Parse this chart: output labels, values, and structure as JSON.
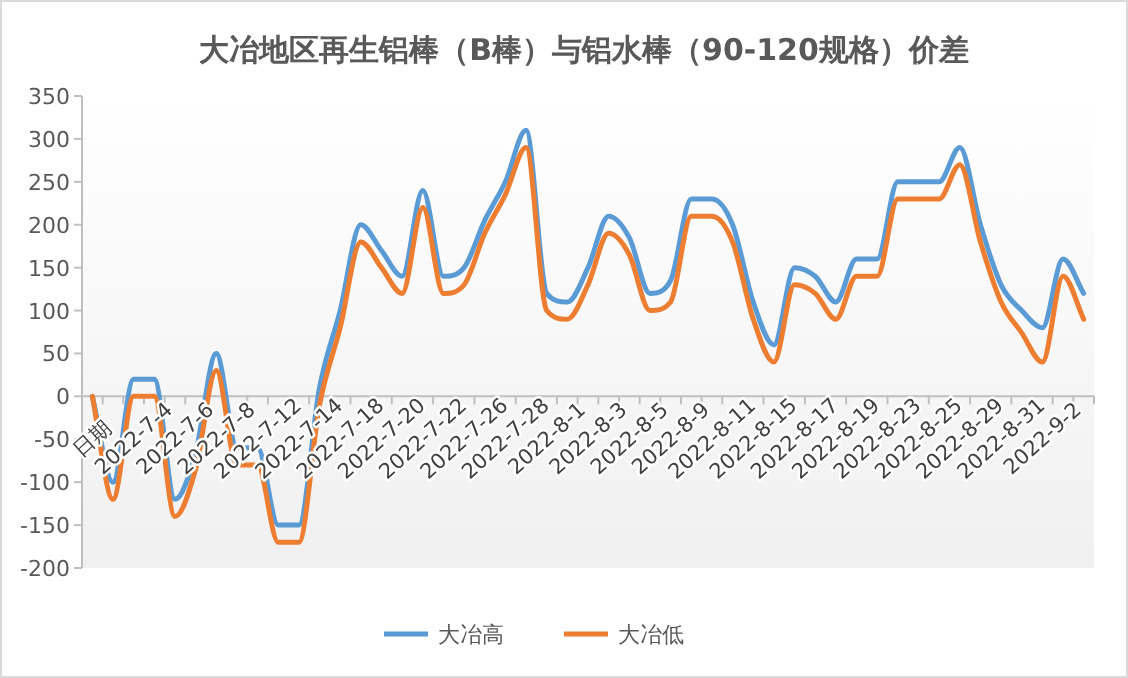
{
  "chart_data": {
    "type": "line",
    "title": "大冶地区再生铝棒（B棒）与铝水棒（90-120规格）价差",
    "categories": [
      "日期",
      null,
      "2022-7-4",
      null,
      "2022-7-6",
      null,
      "2022-7-8",
      null,
      "2022-7-12",
      null,
      "2022-7-14",
      null,
      "2022-7-18",
      null,
      "2022-7-20",
      null,
      "2022-7-22",
      null,
      "2022-7-26",
      null,
      "2022-7-28",
      null,
      "2022-8-1",
      null,
      "2022-8-3",
      null,
      "2022-8-5",
      null,
      "2022-8-9",
      null,
      "2022-8-11",
      null,
      "2022-8-15",
      null,
      "2022-8-17",
      null,
      "2022-8-19",
      null,
      "2022-8-23",
      null,
      "2022-8-25",
      null,
      "2022-8-29",
      null,
      "2022-8-31",
      null,
      "2022-9-2",
      null,
      null
    ],
    "series": [
      {
        "name": "大冶高",
        "color": "#5b9bd5",
        "values": [
          0,
          -100,
          20,
          20,
          -120,
          -66,
          50,
          -60,
          -60,
          -150,
          -150,
          10,
          100,
          200,
          170,
          140,
          240,
          140,
          150,
          205,
          250,
          310,
          120,
          110,
          150,
          210,
          185,
          120,
          135,
          230,
          230,
          200,
          110,
          60,
          150,
          140,
          110,
          160,
          160,
          250,
          250,
          250,
          290,
          200,
          130,
          100,
          80,
          160,
          120
        ]
      },
      {
        "name": "大冶低",
        "color": "#ed7d31",
        "values": [
          0,
          -120,
          0,
          0,
          -140,
          -85,
          30,
          -80,
          -80,
          -170,
          -170,
          -10,
          80,
          180,
          150,
          120,
          220,
          120,
          130,
          190,
          235,
          290,
          100,
          90,
          130,
          190,
          165,
          100,
          110,
          210,
          210,
          180,
          90,
          40,
          130,
          120,
          90,
          140,
          140,
          230,
          230,
          230,
          270,
          180,
          110,
          74,
          40,
          140,
          90
        ]
      }
    ],
    "ylim": [
      -200,
      350
    ],
    "yticks": [
      -200,
      -150,
      -100,
      -50,
      0,
      50,
      100,
      150,
      200,
      250,
      300,
      350
    ],
    "grid": false,
    "legend": "bottom",
    "marker": "none",
    "line_style": "solid"
  }
}
